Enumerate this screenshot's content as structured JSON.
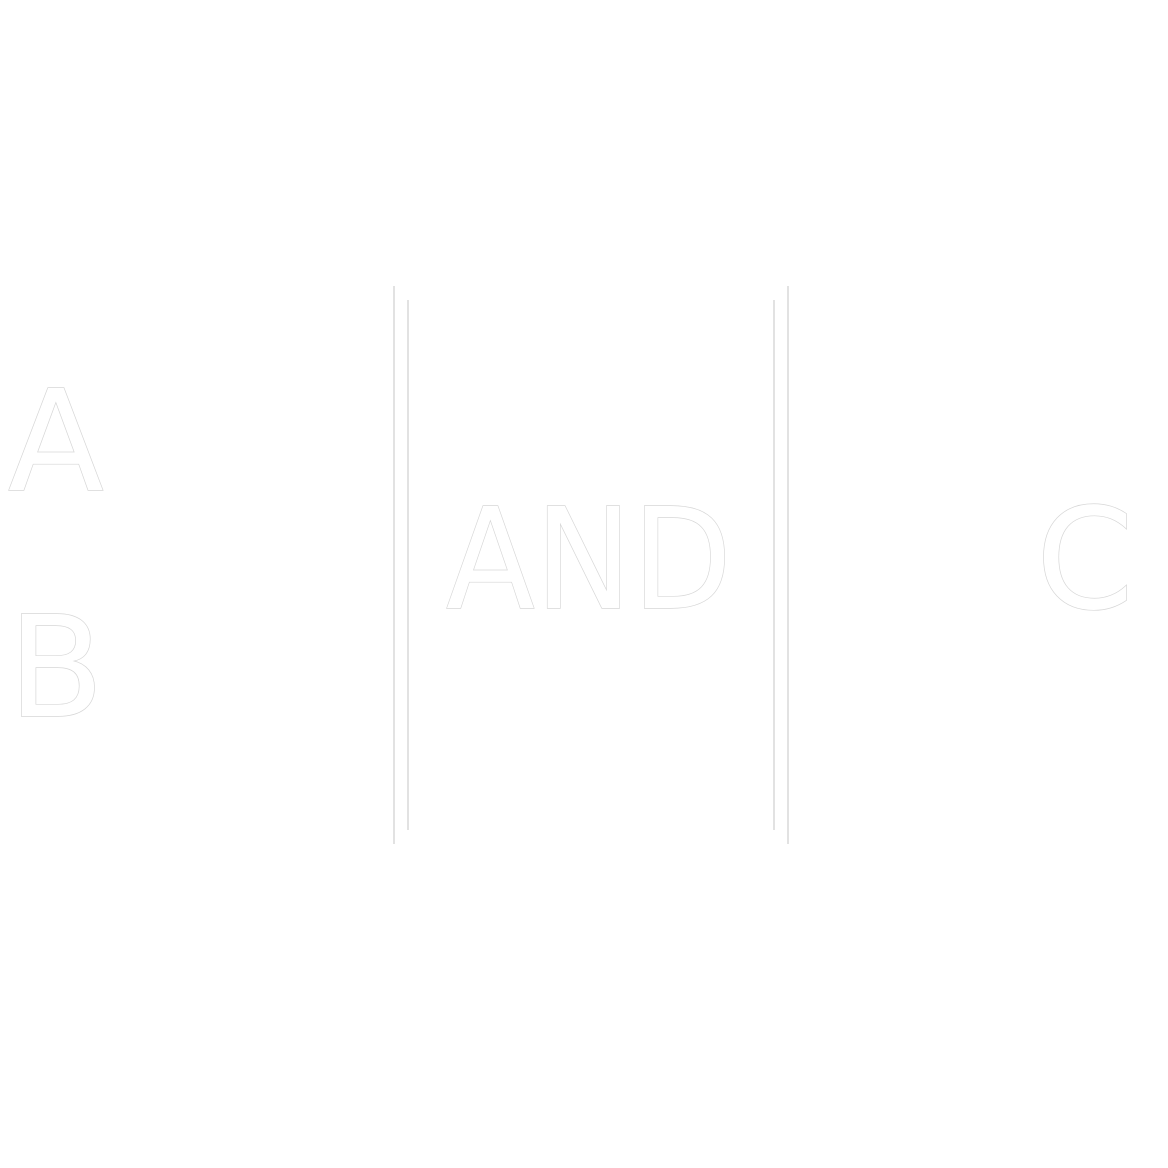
{
  "gate": {
    "label": "AND",
    "inputs": [
      "A",
      "B"
    ],
    "output": "C"
  },
  "colors": {
    "background": "#ffffff",
    "glyph_fill": "#ffffff",
    "glyph_outline": "#d6d6d6"
  }
}
